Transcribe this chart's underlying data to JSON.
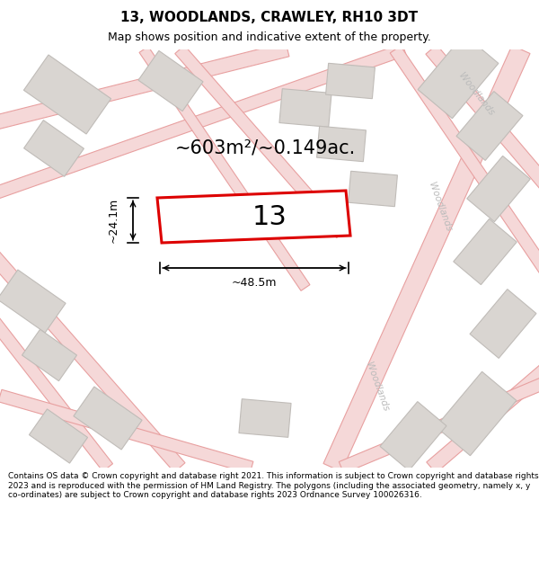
{
  "title": "13, WOODLANDS, CRAWLEY, RH10 3DT",
  "subtitle": "Map shows position and indicative extent of the property.",
  "footer": "Contains OS data © Crown copyright and database right 2021. This information is subject to Crown copyright and database rights 2023 and is reproduced with the permission of HM Land Registry. The polygons (including the associated geometry, namely x, y co-ordinates) are subject to Crown copyright and database rights 2023 Ordnance Survey 100026316.",
  "area_text": "~603m²/~0.149ac.",
  "property_label": "13",
  "width_label": "~48.5m",
  "height_label": "~24.1m",
  "map_bg": "#f7f2ee",
  "property_fill": "#ffffff",
  "property_edge": "#dd0000",
  "building_fill": "#d9d5d1",
  "building_edge": "#c0bcb8",
  "road_fill": "#f5d8d8",
  "road_edge": "#e8a0a0",
  "street_color": "#bbbbbb",
  "figsize": [
    6.0,
    6.25
  ],
  "dpi": 100,
  "title_fs": 11,
  "subtitle_fs": 9,
  "area_fs": 15,
  "label_fs": 22,
  "dim_fs": 9,
  "footer_fs": 6.5
}
